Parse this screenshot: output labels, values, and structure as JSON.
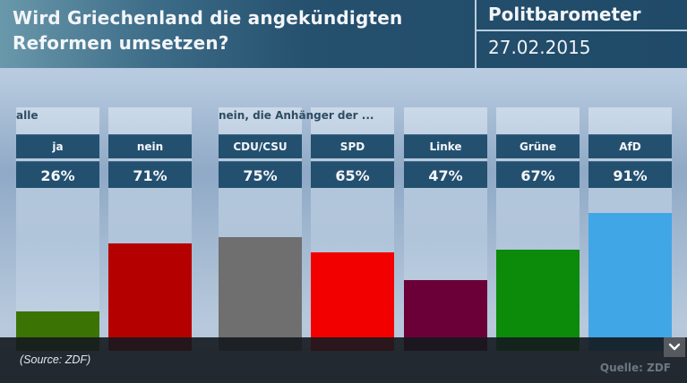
{
  "header": {
    "title_line1": "Wird Griechenland die angekündigten",
    "title_line2": "Reformen umsetzen?",
    "brand": "Politbarometer",
    "date": "27.02.2015"
  },
  "groups": {
    "all": "alle",
    "supporters": "nein, die Anhänger der ..."
  },
  "chart_data": {
    "type": "bar",
    "title": "Wird Griechenland die angekündigten Reformen umsetzen?",
    "xlabel": "",
    "ylabel": "",
    "ylim": [
      0,
      100
    ],
    "grid": false,
    "categories": [
      "ja",
      "nein",
      "CDU/CSU",
      "SPD",
      "Linke",
      "Grüne",
      "AfD"
    ],
    "values": [
      26,
      71,
      75,
      65,
      47,
      67,
      91
    ],
    "value_labels": [
      "26%",
      "71%",
      "75%",
      "65%",
      "47%",
      "67%",
      "91%"
    ],
    "colors": [
      "#3c7305",
      "#b50000",
      "#6f6f6f",
      "#f20000",
      "#6a0037",
      "#0c8a0a",
      "#41a6e6"
    ],
    "groups": [
      {
        "name": "alle",
        "categories": [
          "ja",
          "nein"
        ]
      },
      {
        "name": "nein, die Anhänger der ...",
        "categories": [
          "CDU/CSU",
          "SPD",
          "Linke",
          "Grüne",
          "AfD"
        ]
      }
    ]
  },
  "footer": {
    "source_caption": "(Source: ZDF)",
    "quelle": "Quelle: ZDF",
    "expand_icon": "chevron-down-icon"
  }
}
